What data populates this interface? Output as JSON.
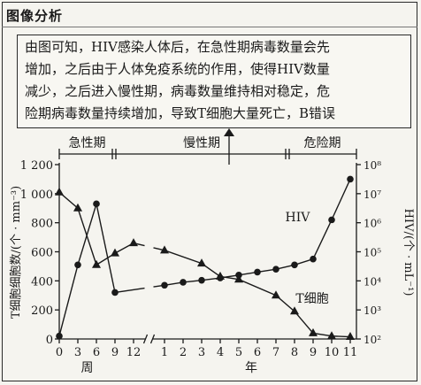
{
  "heading": "图像分析",
  "explanation": [
    "由图可知，HIV感染人体后，在急性期病毒数量会先",
    "增加，之后由于人体免疫系统的作用，使得HIV数量",
    "减少，之后进入慢性期，病毒数量维持相对稳定，危",
    "险期病毒数量持续增加，导致T细胞大量死亡，B错误"
  ],
  "chart_data": {
    "type": "line",
    "phases": [
      {
        "label": "急性期",
        "from": 0,
        "to": 9
      },
      {
        "label": "慢性期",
        "from": 9,
        "to": 37
      },
      {
        "label": "危险期",
        "from": 37,
        "to": 48
      }
    ],
    "x_ticks": [
      {
        "label": "0",
        "x": 0
      },
      {
        "label": "3",
        "x": 3
      },
      {
        "label": "6",
        "x": 6
      },
      {
        "label": "9",
        "x": 9
      },
      {
        "label": "12",
        "x": 12
      },
      {
        "label": "1",
        "x": 17
      },
      {
        "label": "2",
        "x": 20
      },
      {
        "label": "3",
        "x": 23
      },
      {
        "label": "4",
        "x": 26
      },
      {
        "label": "5",
        "x": 29
      },
      {
        "label": "6",
        "x": 32
      },
      {
        "label": "7",
        "x": 35
      },
      {
        "label": "8",
        "x": 38
      },
      {
        "label": "9",
        "x": 41
      },
      {
        "label": "10",
        "x": 44
      },
      {
        "label": "11",
        "x": 47
      }
    ],
    "x_unit_weeks": "周",
    "x_unit_years": "年",
    "x_range": [
      0,
      48
    ],
    "x_break": 14.5,
    "y_left": {
      "label": "T细胞细胞数/(个 · mm⁻³)",
      "ticks": [
        0,
        200,
        400,
        600,
        800,
        1000,
        1200
      ],
      "tick_labels": [
        "0",
        "200",
        "400",
        "600",
        "800",
        "1 000",
        "1 200"
      ],
      "range": [
        0,
        1200
      ]
    },
    "y_right": {
      "label": "HIV/(个 · mL⁻¹)",
      "scale": "log",
      "ticks": [
        2,
        3,
        4,
        5,
        6,
        7,
        8
      ],
      "tick_labels": [
        "10²",
        "10³",
        "10⁴",
        "10⁵",
        "10⁶",
        "10⁷",
        "10⁸"
      ],
      "range": [
        2,
        8
      ]
    },
    "series": [
      {
        "name": "T细胞",
        "axis": "left",
        "marker": "triangle",
        "x": [
          0,
          3,
          6,
          9,
          12,
          17,
          23,
          26,
          29,
          35,
          38,
          41,
          44,
          47
        ],
        "y": [
          1010,
          900,
          510,
          590,
          660,
          610,
          520,
          430,
          410,
          300,
          190,
          40,
          20,
          15
        ]
      },
      {
        "name": "HIV",
        "axis": "right",
        "marker": "circle",
        "x": [
          0,
          3,
          6,
          9,
          17,
          20,
          23,
          26,
          29,
          32,
          35,
          38,
          41,
          44,
          47
        ],
        "y_log10": [
          2.1,
          4.55,
          6.65,
          3.6,
          3.85,
          3.95,
          4.02,
          4.1,
          4.2,
          4.3,
          4.4,
          4.55,
          4.75,
          6.1,
          7.5
        ]
      }
    ]
  }
}
